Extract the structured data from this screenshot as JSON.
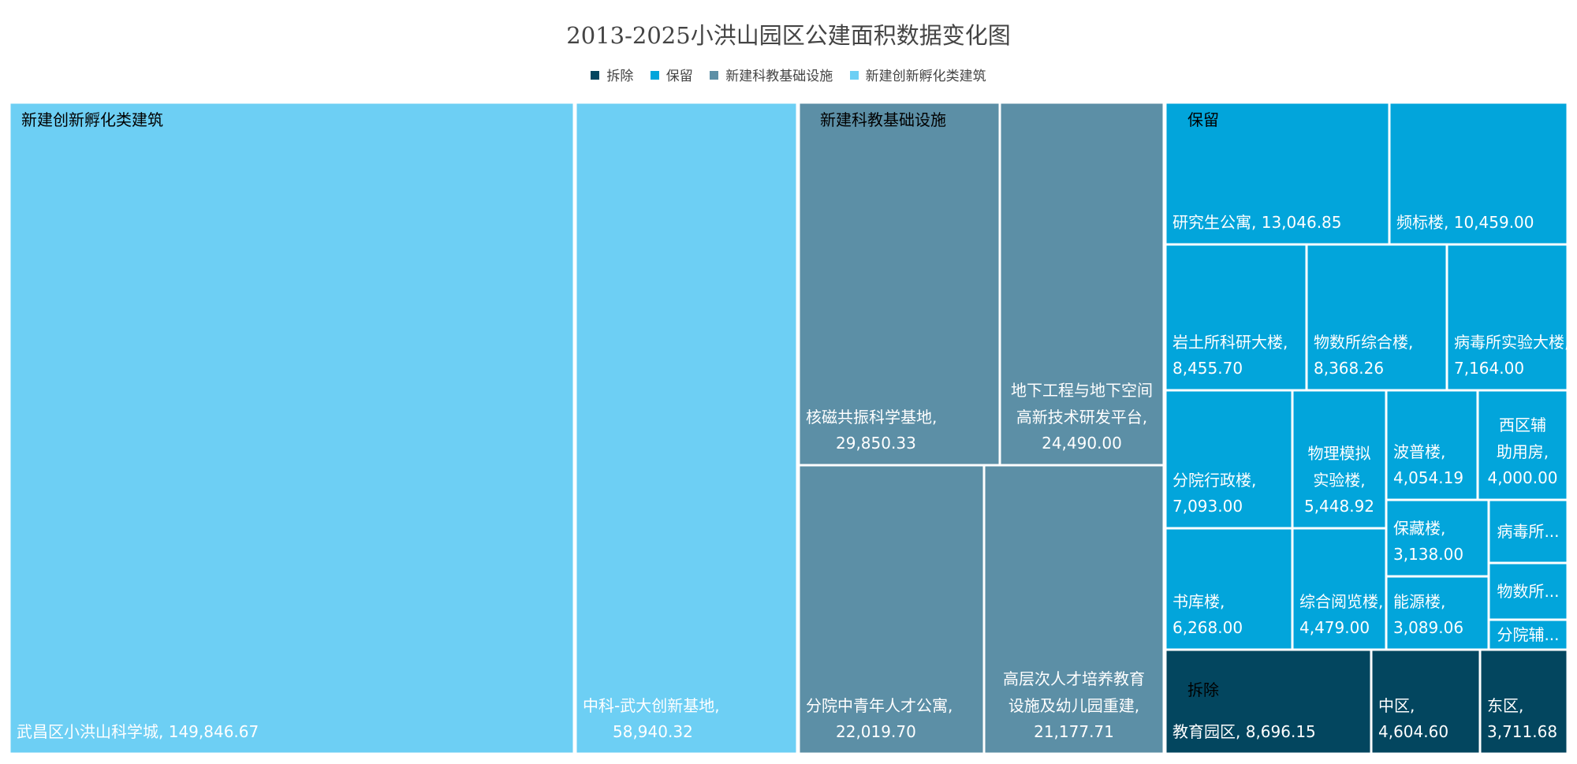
{
  "chart_data": {
    "type": "treemap",
    "title": "2013-2025小洪山园区公建面积数据变化图",
    "legend_position": "top",
    "colors": {
      "拆除": "#03465f",
      "保留": "#02a5db",
      "新建科教基础设施": "#5c8fa6",
      "新建创新孵化类建筑": "#6dcff4"
    },
    "groups": [
      {
        "name": "新建创新孵化类建筑",
        "items": [
          {
            "name": "武昌区小洪山科学城",
            "value": "149,846.67"
          },
          {
            "name": "中科-武大创新基地",
            "value": "58,940.32"
          }
        ]
      },
      {
        "name": "新建科教基础设施",
        "items": [
          {
            "name": "核磁共振科学基地",
            "value": "29,850.33"
          },
          {
            "name": "地下工程与地下空间高新技术研发平台",
            "value": "24,490.00"
          },
          {
            "name": "分院中青年人才公寓",
            "value": "22,019.70"
          },
          {
            "name": "高层次人才培养教育设施及幼儿园重建",
            "value": "21,177.71"
          }
        ]
      },
      {
        "name": "保留",
        "items": [
          {
            "name": "研究生公寓",
            "value": "13,046.85"
          },
          {
            "name": "频标楼",
            "value": "10,459.00"
          },
          {
            "name": "岩土所科研大楼",
            "value": "8,455.70"
          },
          {
            "name": "物数所综合楼",
            "value": "8,368.26"
          },
          {
            "name": "病毒所实验大楼",
            "value": "7,164.00"
          },
          {
            "name": "分院行政楼",
            "value": "7,093.00"
          },
          {
            "name": "物理模拟实验楼",
            "value": "5,448.92"
          },
          {
            "name": "波普楼",
            "value": "4,054.19"
          },
          {
            "name": "西区辅助用房",
            "value": "4,000.00"
          },
          {
            "name": "书库楼",
            "value": "6,268.00"
          },
          {
            "name": "综合阅览楼",
            "value": "4,479.00"
          },
          {
            "name": "保藏楼",
            "value": "3,138.00"
          },
          {
            "name": "能源楼",
            "value": "3,089.06"
          },
          {
            "name": "病毒所...",
            "value": ""
          },
          {
            "name": "物数所...",
            "value": ""
          },
          {
            "name": "分院辅...",
            "value": ""
          }
        ]
      },
      {
        "name": "拆除",
        "items": [
          {
            "name": "教育园区",
            "value": "8,696.15"
          },
          {
            "name": "中区",
            "value": "4,604.60"
          },
          {
            "name": "东区",
            "value": "3,711.68"
          }
        ]
      }
    ]
  },
  "legend": [
    {
      "label": "拆除",
      "color": "#03465f"
    },
    {
      "label": "保留",
      "color": "#02a5db"
    },
    {
      "label": "新建科教基础设施",
      "color": "#5c8fa6"
    },
    {
      "label": "新建创新孵化类建筑",
      "color": "#6dcff4"
    }
  ]
}
